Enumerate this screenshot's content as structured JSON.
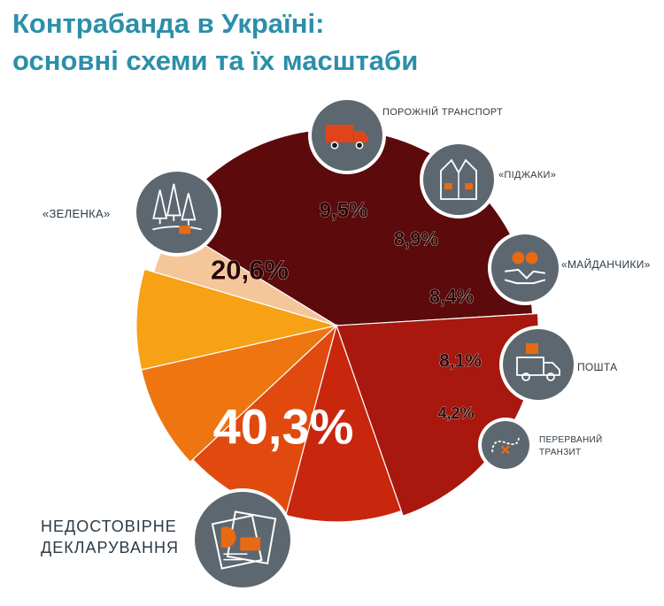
{
  "header": {
    "title_line1": "Контрабанда в Україні:",
    "title_line2": "основні схеми та їх масштаби"
  },
  "colors": {
    "title": "#2b8fa9",
    "icon_circle": "#5d6770",
    "label_text": "#2d3a44"
  },
  "chart_data": {
    "type": "pie",
    "title": "Контрабанда в Україні: основні схеми та їх масштаби",
    "unit": "%",
    "slices": [
      {
        "name": "НЕДОСТОВІРНЕ ДЕКЛАРУВАННЯ",
        "label_lines": [
          "НЕДОСТОВІРНЕ",
          "ДЕКЛАРУВАННЯ"
        ],
        "value": 40.3,
        "value_label": "40,3%",
        "color": "#5c0a0b",
        "icon": "documents-icon"
      },
      {
        "name": "«ЗЕЛЕНКА»",
        "label_lines": [
          "«ЗЕЛЕНКА»"
        ],
        "value": 20.6,
        "value_label": "20,6%",
        "color": "#a8180f",
        "icon": "forest-icon"
      },
      {
        "name": "ПОРОЖНІЙ ТРАНСПОРТ",
        "label_lines": [
          "ПОРОЖНІЙ ТРАНСПОРТ"
        ],
        "value": 9.5,
        "value_label": "9,5%",
        "color": "#c9260e",
        "icon": "truck-icon"
      },
      {
        "name": "«ПІДЖАКИ»",
        "label_lines": [
          "«ПІДЖАКИ»"
        ],
        "value": 8.9,
        "value_label": "8,9%",
        "color": "#e04a0f",
        "icon": "jacket-icon"
      },
      {
        "name": "«МАЙДАНЧИКИ»",
        "label_lines": [
          "«МАЙДАНЧИКИ»"
        ],
        "value": 8.4,
        "value_label": "8,4%",
        "color": "#ef7511",
        "icon": "handshake-icon"
      },
      {
        "name": "ПОШТА",
        "label_lines": [
          "ПОШТА"
        ],
        "value": 8.1,
        "value_label": "8,1%",
        "color": "#f6a214",
        "icon": "delivery-van-icon"
      },
      {
        "name": "ПЕРЕРВАНИЙ ТРАНЗИТ",
        "label_lines": [
          "ПЕРЕРВАНИЙ",
          "ТРАНЗИТ"
        ],
        "value": 4.2,
        "value_label": "4,2%",
        "color": "#f5c69a",
        "icon": "broken-route-icon"
      }
    ]
  }
}
